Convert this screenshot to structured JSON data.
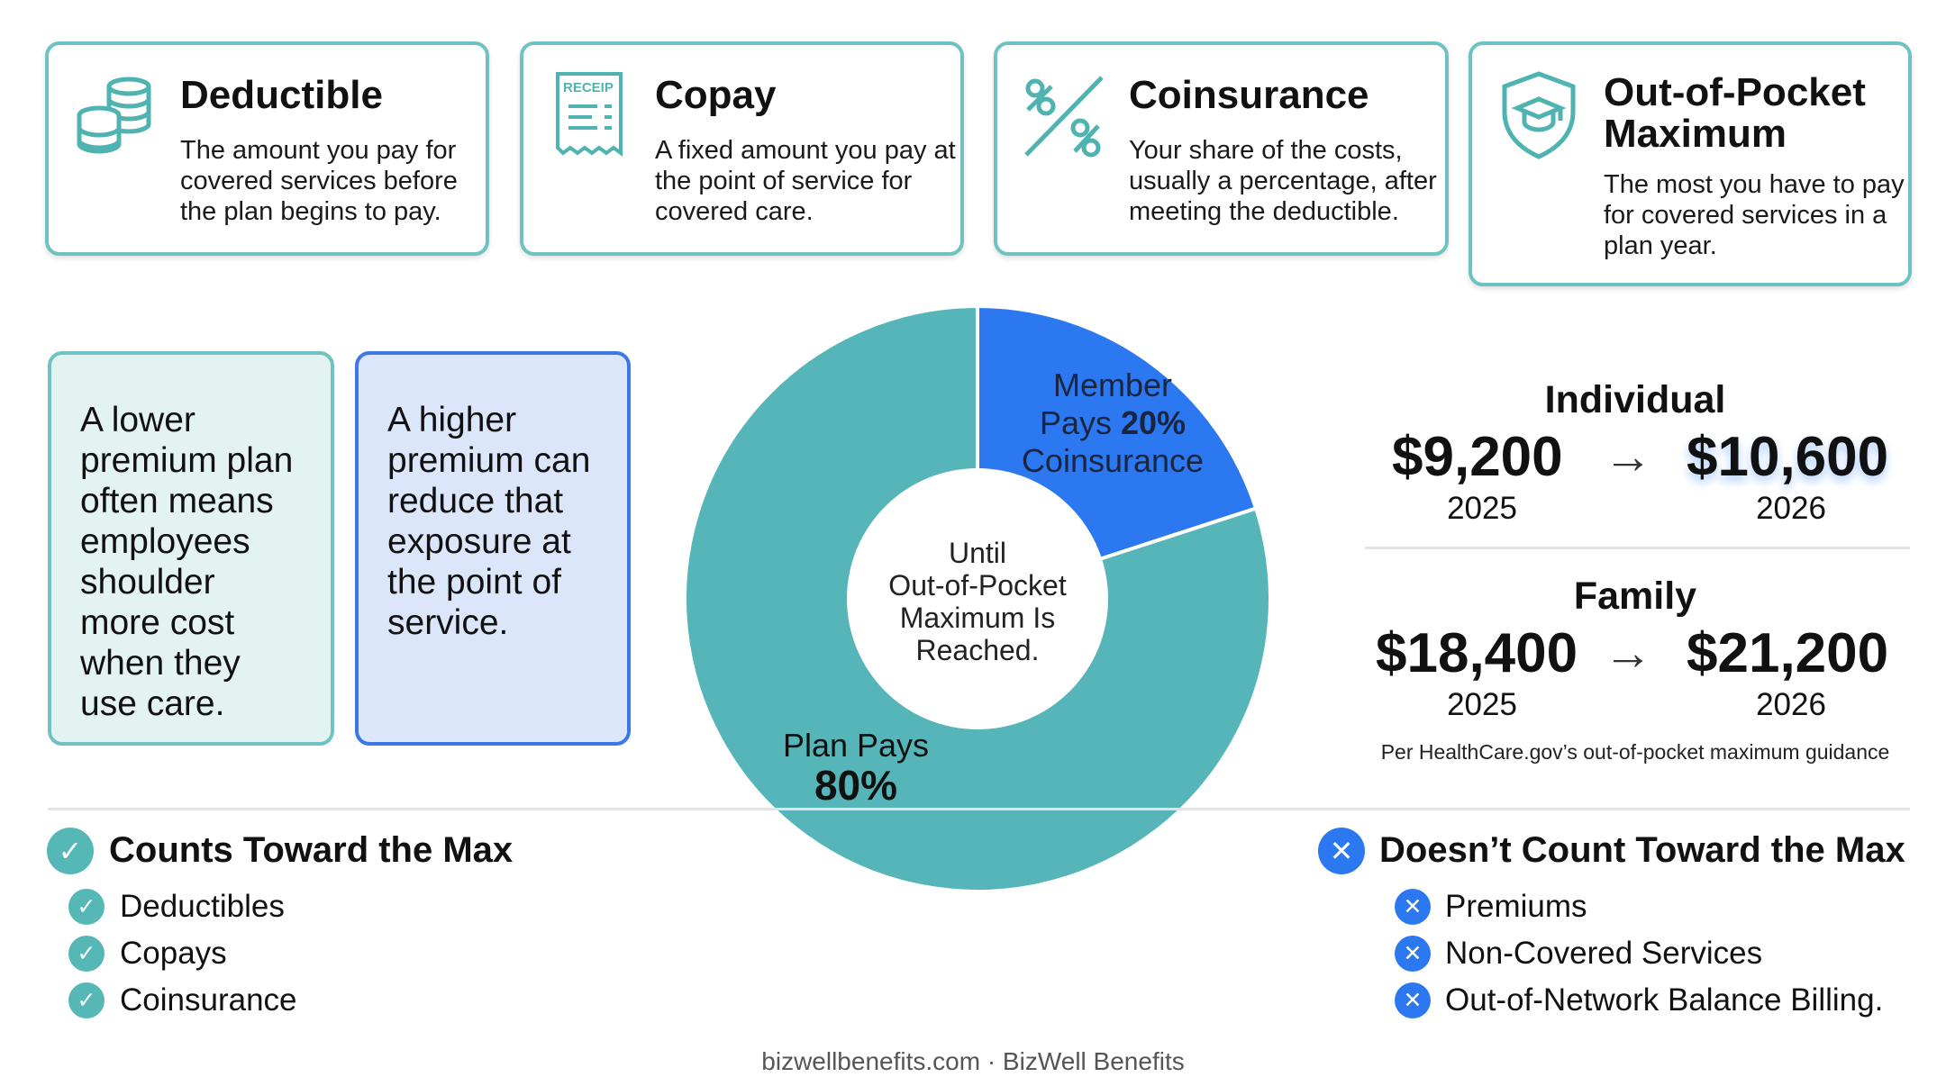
{
  "cards": [
    {
      "title": "Deductible",
      "text": "The amount you pay for covered services before the plan begins to pay.",
      "icon": "coins-icon"
    },
    {
      "title": "Copay",
      "text": "A fixed amount you pay at the point of service for covered care.",
      "icon": "receipt-icon",
      "icon_text": "RECEIP"
    },
    {
      "title": "Coinsurance",
      "text": "Your share of the costs, usually a percentage, after meeting the deductible.",
      "icon": "percent-icon"
    },
    {
      "title": "Out-of-Pocket Maximum",
      "text": "The most you have to pay for covered services in a plan year.",
      "icon": "shield-icon"
    }
  ],
  "tips": [
    "A lower premium plan often means employees shoulder more cost when they use care.",
    "A higher premium can reduce that exposure at the point of service."
  ],
  "chart_data": {
    "type": "pie",
    "slices": [
      {
        "label": "Member Pays 20% Coinsurance",
        "value": 20,
        "color": "#2b78f0"
      },
      {
        "label": "Plan Pays 80%",
        "value": 80,
        "color": "#55b5b8"
      }
    ],
    "center_label": "Until Out-of-Pocket Maximum Is Reached.",
    "member_line1": "Member",
    "member_line2a": "Pays ",
    "member_pct": "20%",
    "member_line3": "Coinsurance",
    "plan_line1": "Plan Pays",
    "plan_pct": "80%",
    "center_lines": [
      "Until",
      "Out-of-Pocket",
      "Maximum Is",
      "Reached."
    ]
  },
  "oop": {
    "individual": {
      "title": "Individual",
      "from_amount": "$9,200",
      "from_year": "2025",
      "to_amount": "$10,600",
      "to_year": "2026"
    },
    "family": {
      "title": "Family",
      "from_amount": "$18,400",
      "from_year": "2025",
      "to_amount": "$21,200",
      "to_year": "2026"
    },
    "arrow": "→",
    "source": "Per HealthCare.gov’s out-of-pocket maximum guidance"
  },
  "counts": {
    "title": "Counts Toward the Max",
    "items": [
      "Deductibles",
      "Copays",
      "Coinsurance"
    ],
    "badge": "✓"
  },
  "not_counts": {
    "title": "Doesn’t Count Toward the Max",
    "items": [
      "Premiums",
      "Non-Covered Services",
      "Out-of-Network Balance Billing."
    ],
    "badge": "✕"
  },
  "colors": {
    "teal": "#55b8b6",
    "blue": "#2b78f0",
    "card_border": "#6ec3c2"
  },
  "footer": "bizwellbenefits.com · BizWell Benefits"
}
